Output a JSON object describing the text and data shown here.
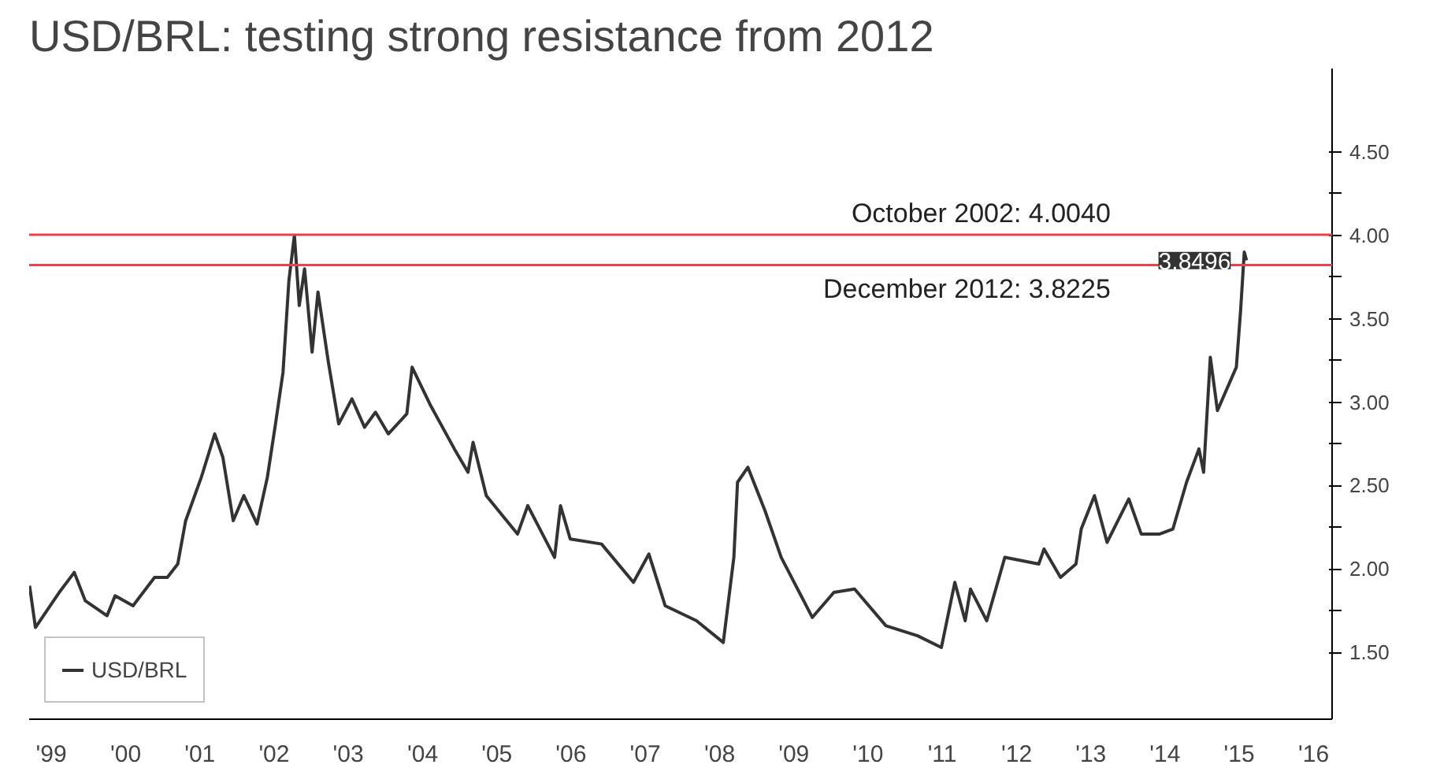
{
  "chart_data": {
    "type": "line",
    "title": "USD/BRL: testing strong resistance from 2012",
    "x": [
      "1999-03-17",
      "1999-04-15",
      "1999-08-10",
      "1999-10-23",
      "1999-12-16",
      "2000-04-01",
      "2000-05-11",
      "2000-08-07",
      "2000-11-21",
      "2001-01-23",
      "2001-03-15",
      "2001-04-23",
      "2001-07-09",
      "2001-09-13",
      "2001-10-23",
      "2001-12-13",
      "2002-02-03",
      "2002-04-09",
      "2002-05-30",
      "2002-07-09",
      "2002-08-15",
      "2002-09-13",
      "2002-10-10",
      "2002-11-03",
      "2002-11-29",
      "2003-01-05",
      "2003-02-03",
      "2003-03-26",
      "2003-05-16",
      "2003-07-20",
      "2003-09-20",
      "2003-11-13",
      "2004-01-15",
      "2004-04-15",
      "2004-05-11",
      "2004-08-10",
      "2004-12-05",
      "2005-02-10",
      "2005-03-07",
      "2005-05-11",
      "2005-10-12",
      "2005-12-01",
      "2006-04-12",
      "2006-05-11",
      "2006-06-28",
      "2006-11-29",
      "2007-05-05",
      "2007-07-20",
      "2007-10-08",
      "2008-03-10",
      "2008-07-20",
      "2008-09-10",
      "2008-09-28",
      "2008-11-18",
      "2009-02-10",
      "2009-05-01",
      "2009-10-01",
      "2010-01-15",
      "2010-04-27",
      "2010-09-28",
      "2011-03-03",
      "2011-06-28",
      "2011-09-02",
      "2011-10-23",
      "2011-11-18",
      "2012-02-06",
      "2012-05-05",
      "2012-10-19",
      "2012-11-14",
      "2013-02-03",
      "2013-04-20",
      "2013-05-16",
      "2013-07-20",
      "2013-09-20",
      "2014-01-05",
      "2014-03-07",
      "2014-06-06",
      "2014-08-10",
      "2014-10-16",
      "2014-12-16",
      "2015-01-08",
      "2015-02-10",
      "2015-03-17",
      "2015-06-18",
      "2015-07-09",
      "2015-07-27",
      "2015-08-07"
    ],
    "series": [
      {
        "name": "USD/BRL",
        "color": "#333333",
        "values": [
          1.9,
          1.65,
          1.86,
          1.98,
          1.81,
          1.72,
          1.84,
          1.78,
          1.95,
          1.95,
          2.03,
          2.29,
          2.55,
          2.81,
          2.67,
          2.29,
          2.44,
          2.27,
          2.55,
          2.87,
          3.18,
          3.73,
          4.0,
          3.58,
          3.8,
          3.3,
          3.66,
          3.24,
          2.87,
          3.02,
          2.85,
          2.94,
          2.81,
          2.93,
          3.21,
          2.98,
          2.72,
          2.58,
          2.76,
          2.44,
          2.21,
          2.38,
          2.07,
          2.38,
          2.18,
          2.15,
          1.92,
          2.09,
          1.78,
          1.69,
          1.56,
          2.07,
          2.52,
          2.61,
          2.35,
          2.07,
          1.71,
          1.86,
          1.88,
          1.66,
          1.6,
          1.53,
          1.92,
          1.69,
          1.88,
          1.69,
          2.07,
          2.03,
          2.12,
          1.95,
          2.03,
          2.24,
          2.44,
          2.16,
          2.42,
          2.21,
          2.21,
          2.24,
          2.52,
          2.72,
          2.58,
          3.27,
          2.95,
          3.21,
          3.55,
          3.9,
          3.85
        ]
      }
    ],
    "xlim": [
      "1999-03-15",
      "2016-10-01"
    ],
    "xticks": [
      {
        "value": "1999-07-02",
        "label": "'99"
      },
      {
        "value": "2000-07-02",
        "label": "'00"
      },
      {
        "value": "2001-07-02",
        "label": "'01"
      },
      {
        "value": "2002-07-02",
        "label": "'02"
      },
      {
        "value": "2003-07-02",
        "label": "'03"
      },
      {
        "value": "2004-07-02",
        "label": "'04"
      },
      {
        "value": "2005-07-02",
        "label": "'05"
      },
      {
        "value": "2006-07-02",
        "label": "'06"
      },
      {
        "value": "2007-07-02",
        "label": "'07"
      },
      {
        "value": "2008-07-02",
        "label": "'08"
      },
      {
        "value": "2009-07-02",
        "label": "'09"
      },
      {
        "value": "2010-07-02",
        "label": "'10"
      },
      {
        "value": "2011-07-02",
        "label": "'11"
      },
      {
        "value": "2012-07-02",
        "label": "'12"
      },
      {
        "value": "2013-07-02",
        "label": "'13"
      },
      {
        "value": "2014-07-02",
        "label": "'14"
      },
      {
        "value": "2015-07-02",
        "label": "'15"
      },
      {
        "value": "2016-07-02",
        "label": "'16"
      }
    ],
    "ylim": [
      1.1,
      5.0
    ],
    "yticks": [
      {
        "value": 1.5,
        "label": "1.50"
      },
      {
        "value": 1.75,
        "label": null
      },
      {
        "value": 2.0,
        "label": "2.00"
      },
      {
        "value": 2.25,
        "label": null
      },
      {
        "value": 2.5,
        "label": "2.50"
      },
      {
        "value": 2.75,
        "label": null
      },
      {
        "value": 3.0,
        "label": "3.00"
      },
      {
        "value": 3.25,
        "label": null
      },
      {
        "value": 3.5,
        "label": "3.50"
      },
      {
        "value": 3.75,
        "label": null
      },
      {
        "value": 4.0,
        "label": "4.00"
      },
      {
        "value": 4.25,
        "label": null
      },
      {
        "value": 4.5,
        "label": "4.50"
      }
    ],
    "ref_lines": [
      {
        "axis": "y",
        "value": 4.004,
        "label": "October 2002: 4.0040",
        "color": "#e8434a"
      },
      {
        "axis": "y",
        "value": 3.8225,
        "label": "December 2012: 3.8225",
        "color": "#e8434a"
      }
    ],
    "annotations": [
      {
        "text": "3.8496",
        "x": "2015-08-07",
        "y": 3.8496
      }
    ],
    "grid": false,
    "legend": "bottom left",
    "marker": "none",
    "line_style": "solid"
  }
}
